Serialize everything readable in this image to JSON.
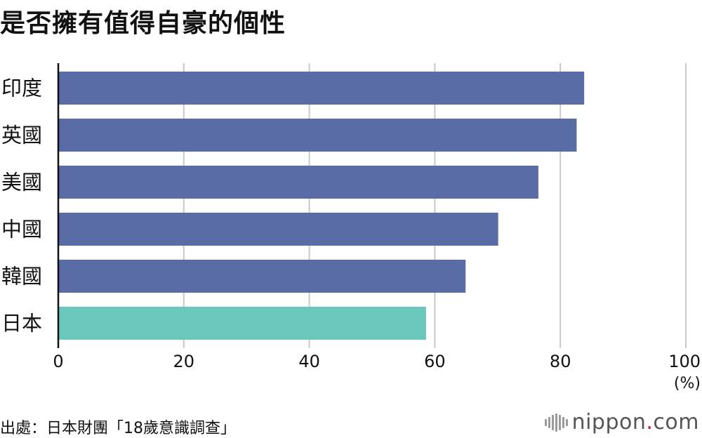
{
  "title": "是否擁有值得自豪的個性",
  "chart_data": {
    "type": "bar",
    "orientation": "horizontal",
    "title": "是否擁有值得自豪的個性",
    "categories": [
      "印度",
      "英國",
      "美國",
      "中國",
      "韓國",
      "日本"
    ],
    "values": [
      83.8,
      82.6,
      76.5,
      70.1,
      64.9,
      58.6
    ],
    "colors": [
      "#5a6ca6",
      "#5a6ca6",
      "#5a6ca6",
      "#5a6ca6",
      "#5a6ca6",
      "#6ac7bb"
    ],
    "xlim": [
      0,
      100
    ],
    "xticks": [
      "0",
      "20",
      "40",
      "60",
      "80",
      "100"
    ],
    "xunit": "(%)",
    "grid": true
  },
  "source": "出處：日本財團「18歲意識調查」",
  "logo": {
    "name": "nippon",
    "dot": ".",
    "suffix": "com"
  }
}
